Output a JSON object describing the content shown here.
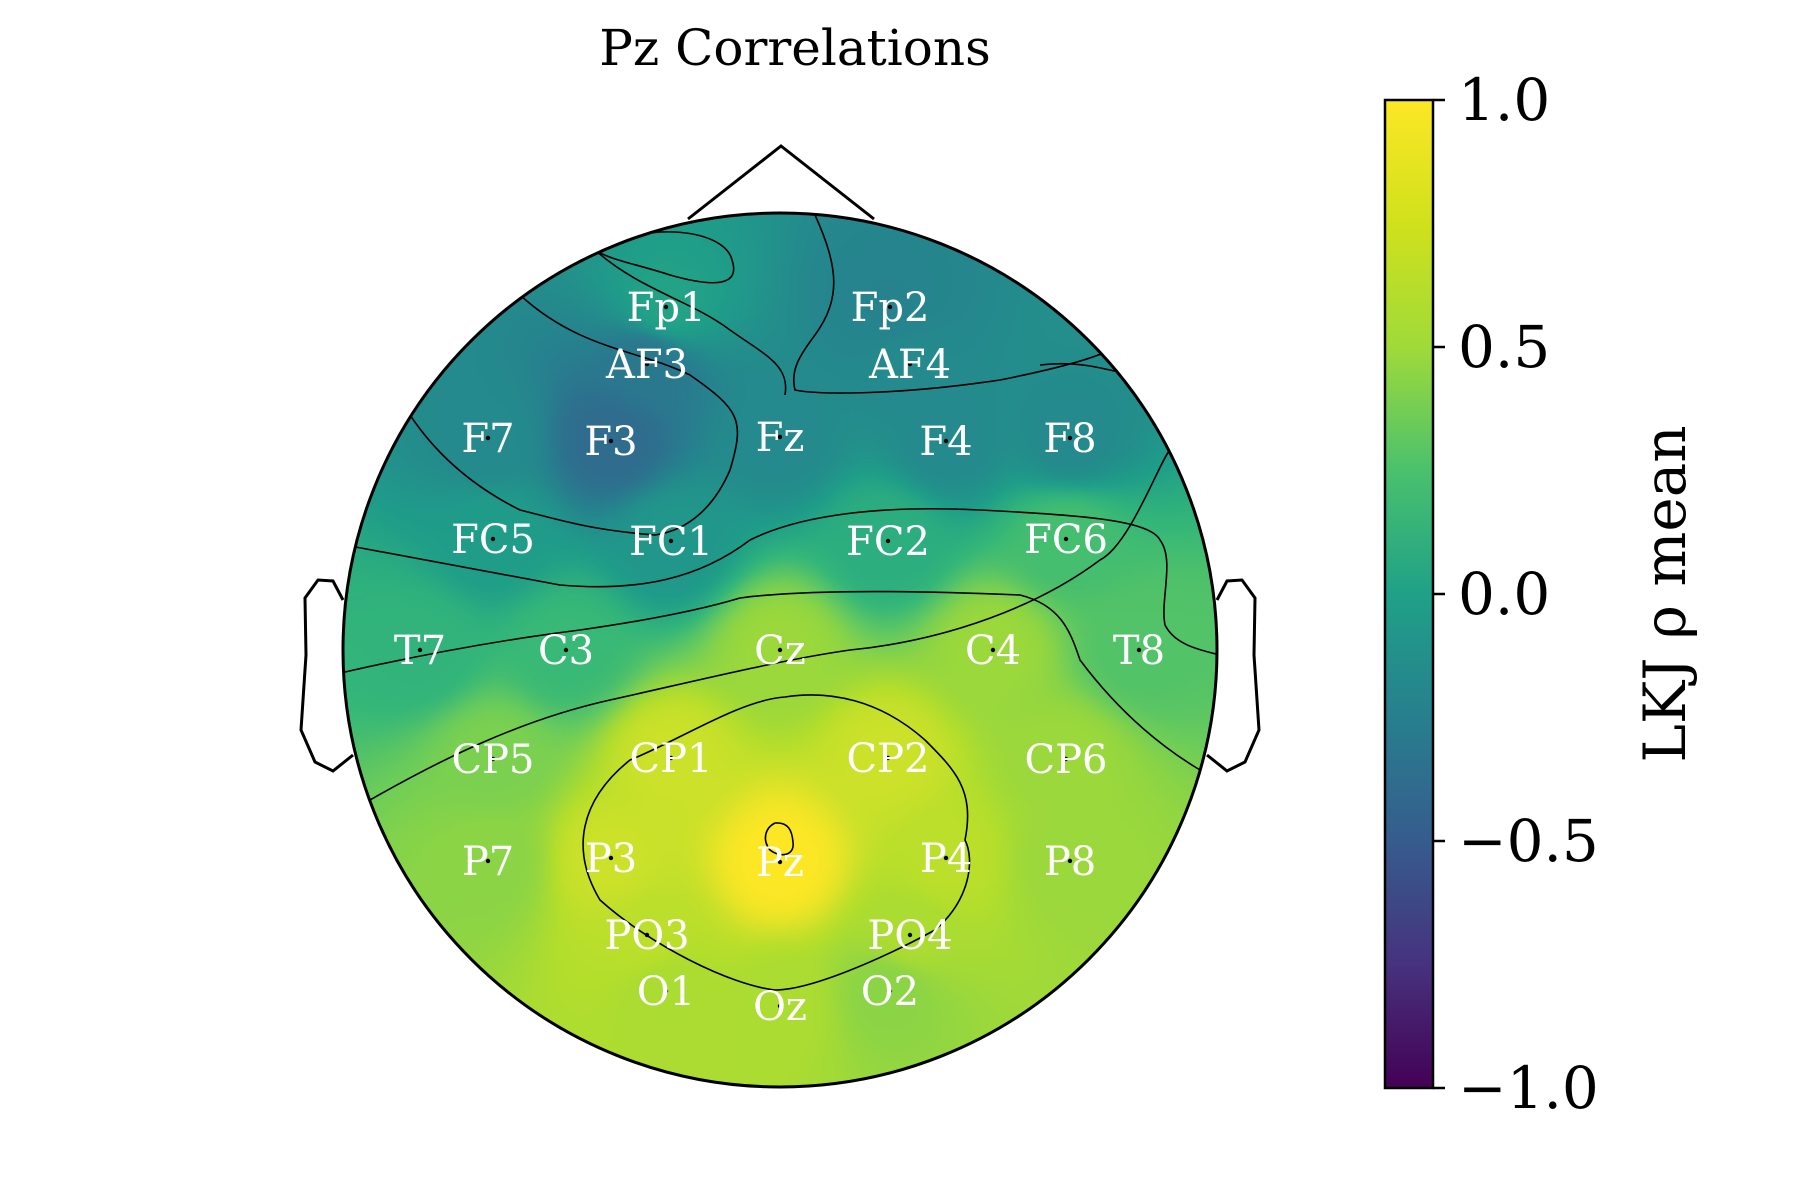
{
  "chart_data": {
    "type": "heatmap",
    "subtype": "eeg-topomap",
    "title": "Pz Correlations",
    "colorbar": {
      "label": "LKJ ρ mean",
      "range": [
        -1.0,
        1.0
      ],
      "ticks": [
        {
          "value": 1.0,
          "label": "1.0"
        },
        {
          "value": 0.5,
          "label": "0.5"
        },
        {
          "value": 0.0,
          "label": "0.0"
        },
        {
          "value": -0.5,
          "label": "−0.5"
        },
        {
          "value": -1.0,
          "label": "−1.0"
        }
      ],
      "colormap": "viridis"
    },
    "electrodes": [
      {
        "name": "Fp1",
        "value": 0.15
      },
      {
        "name": "Fp2",
        "value": -0.1
      },
      {
        "name": "AF3",
        "value": -0.2
      },
      {
        "name": "AF4",
        "value": -0.05
      },
      {
        "name": "F7",
        "value": -0.05
      },
      {
        "name": "F3",
        "value": -0.3
      },
      {
        "name": "Fz",
        "value": -0.05
      },
      {
        "name": "F4",
        "value": -0.05
      },
      {
        "name": "F8",
        "value": -0.05
      },
      {
        "name": "FC5",
        "value": 0.1
      },
      {
        "name": "FC1",
        "value": 0.05
      },
      {
        "name": "FC2",
        "value": 0.25
      },
      {
        "name": "FC6",
        "value": 0.4
      },
      {
        "name": "T7",
        "value": 0.3
      },
      {
        "name": "C3",
        "value": 0.35
      },
      {
        "name": "Cz",
        "value": 0.7
      },
      {
        "name": "C4",
        "value": 0.7
      },
      {
        "name": "T8",
        "value": 0.45
      },
      {
        "name": "CP5",
        "value": 0.6
      },
      {
        "name": "CP1",
        "value": 0.85
      },
      {
        "name": "CP2",
        "value": 0.85
      },
      {
        "name": "CP6",
        "value": 0.7
      },
      {
        "name": "P7",
        "value": 0.65
      },
      {
        "name": "P3",
        "value": 0.85
      },
      {
        "name": "Pz",
        "value": 1.0
      },
      {
        "name": "P4",
        "value": 0.8
      },
      {
        "name": "P8",
        "value": 0.7
      },
      {
        "name": "PO3",
        "value": 0.8
      },
      {
        "name": "PO4",
        "value": 0.75
      },
      {
        "name": "O1",
        "value": 0.75
      },
      {
        "name": "Oz",
        "value": 0.75
      },
      {
        "name": "O2",
        "value": 0.65
      }
    ],
    "contours": true,
    "grid": false
  }
}
